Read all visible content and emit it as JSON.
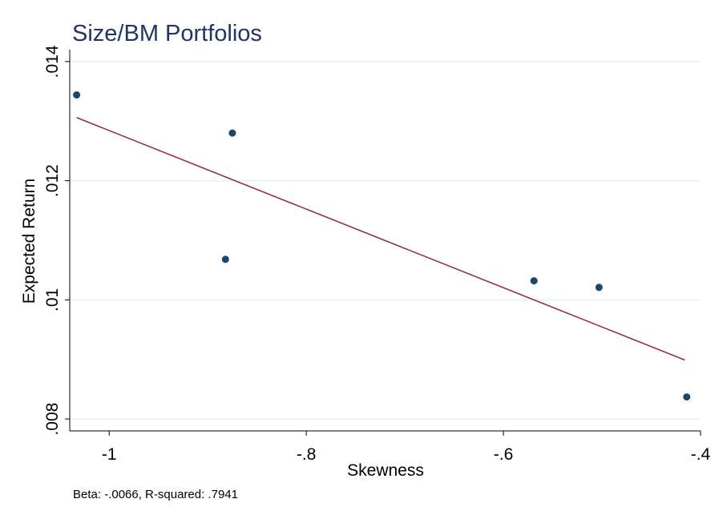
{
  "chart_data": {
    "type": "scatter",
    "title": "Size/BM Portfolios",
    "xlabel": "Skewness",
    "ylabel": "Expected Return",
    "xlim": [
      -1.04,
      -0.4
    ],
    "ylim": [
      0.0078,
      0.0142
    ],
    "xticks": [
      -1,
      -0.8,
      -0.6,
      -0.4
    ],
    "xtick_labels": [
      "-1",
      "-.8",
      "-.6",
      "-.4"
    ],
    "yticks": [
      0.008,
      0.01,
      0.012,
      0.014
    ],
    "ytick_labels": [
      ".008",
      ".01",
      ".012",
      ".014"
    ],
    "grid": true,
    "series": [
      {
        "type": "scatter",
        "color": "#1a476f",
        "points": [
          {
            "x": -1.033,
            "y": 0.01344
          },
          {
            "x": -0.875,
            "y": 0.0128
          },
          {
            "x": -0.882,
            "y": 0.01068
          },
          {
            "x": -0.569,
            "y": 0.01032
          },
          {
            "x": -0.503,
            "y": 0.01021
          },
          {
            "x": -0.414,
            "y": 0.00837
          }
        ]
      },
      {
        "type": "line",
        "color": "#90353b",
        "points": [
          {
            "x": -1.033,
            "y": 0.01306
          },
          {
            "x": -0.416,
            "y": 0.00899
          }
        ]
      }
    ],
    "annotation": "Beta: -.0066, R-squared: .7941"
  },
  "colors": {
    "title": "#1f3563",
    "marker": "#1a476f",
    "fit_line": "#90353b",
    "grid": "#eaf2f3",
    "axis": "#000000"
  }
}
